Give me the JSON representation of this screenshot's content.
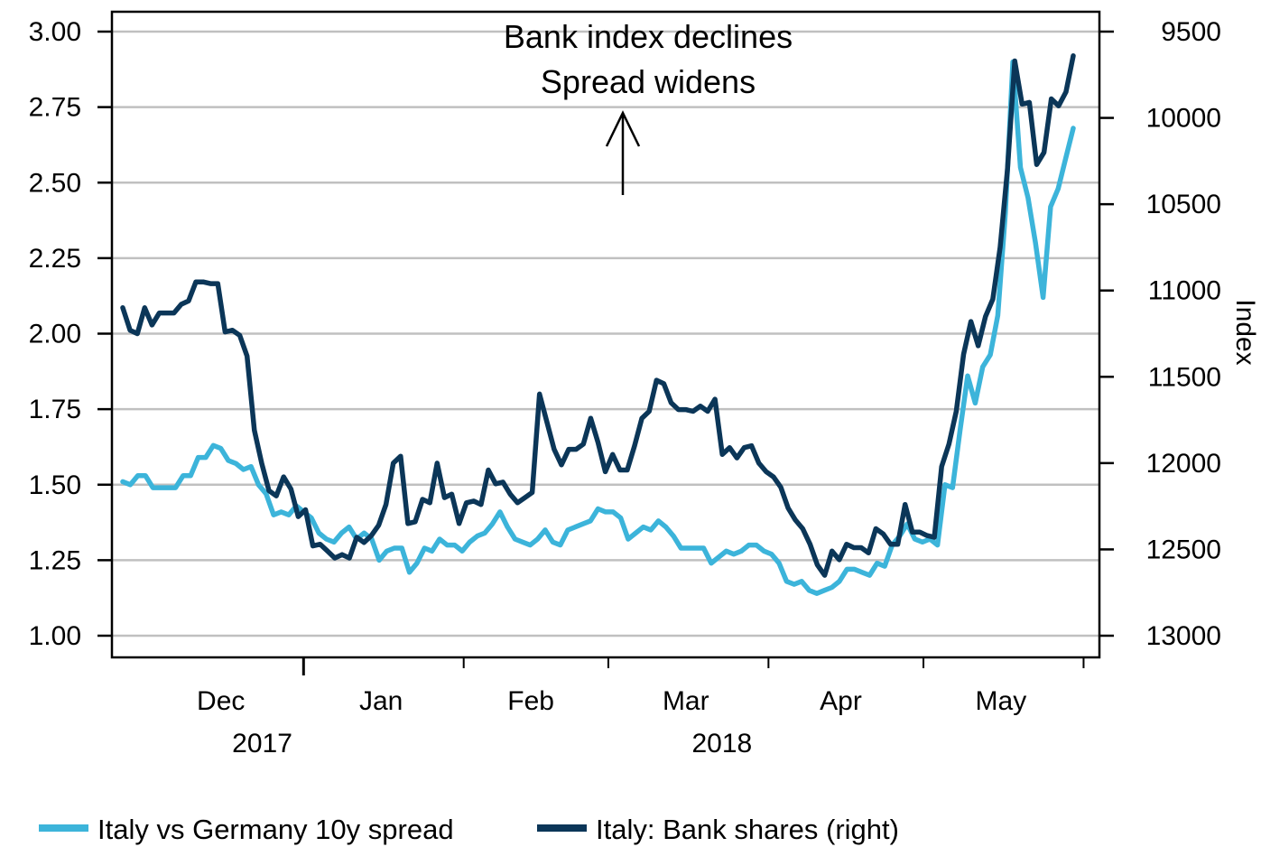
{
  "chart_data": {
    "type": "line",
    "title": "",
    "colors": {
      "spread": "#3cb4da",
      "bank": "#0b3658",
      "grid": "#c0c0c0"
    },
    "grid": true,
    "legend_position": "bottom",
    "annotation": {
      "line1": "Bank index declines",
      "line2": "Spread widens",
      "arrow": "up"
    },
    "x_axis": {
      "months": [
        "Dec",
        "Jan",
        "Feb",
        "Mar",
        "Apr",
        "May"
      ],
      "years": [
        "2017",
        "2018"
      ],
      "range": [
        "2017-11-27",
        "2018-05-30"
      ]
    },
    "y_left": {
      "ylabel": "",
      "ylim": [
        1.0,
        3.0
      ],
      "ticks": [
        "1.00",
        "1.25",
        "1.50",
        "1.75",
        "2.00",
        "2.25",
        "2.50",
        "2.75",
        "3.00"
      ]
    },
    "y_right": {
      "ylabel": "Index",
      "inverted": true,
      "ylim": [
        13000,
        9500
      ],
      "ticks": [
        "9500",
        "10000",
        "10500",
        "11000",
        "11500",
        "12000",
        "12500",
        "13000"
      ]
    },
    "series": [
      {
        "name": "Italy vs Germany 10y spread",
        "axis": "left",
        "values": [
          1.51,
          1.5,
          1.53,
          1.53,
          1.49,
          1.49,
          1.49,
          1.49,
          1.53,
          1.53,
          1.59,
          1.59,
          1.63,
          1.62,
          1.58,
          1.57,
          1.55,
          1.56,
          1.5,
          1.47,
          1.4,
          1.41,
          1.4,
          1.43,
          1.41,
          1.39,
          1.34,
          1.32,
          1.31,
          1.34,
          1.36,
          1.32,
          1.34,
          1.32,
          1.25,
          1.28,
          1.29,
          1.29,
          1.21,
          1.24,
          1.29,
          1.28,
          1.32,
          1.3,
          1.3,
          1.28,
          1.31,
          1.33,
          1.34,
          1.37,
          1.41,
          1.36,
          1.32,
          1.31,
          1.3,
          1.32,
          1.35,
          1.31,
          1.3,
          1.35,
          1.36,
          1.37,
          1.38,
          1.42,
          1.41,
          1.41,
          1.39,
          1.32,
          1.34,
          1.36,
          1.35,
          1.38,
          1.36,
          1.33,
          1.29,
          1.29,
          1.29,
          1.29,
          1.24,
          1.26,
          1.28,
          1.27,
          1.28,
          1.3,
          1.3,
          1.28,
          1.27,
          1.24,
          1.18,
          1.17,
          1.18,
          1.15,
          1.14,
          1.15,
          1.16,
          1.18,
          1.22,
          1.22,
          1.21,
          1.2,
          1.24,
          1.23,
          1.3,
          1.33,
          1.37,
          1.32,
          1.31,
          1.32,
          1.3,
          1.5,
          1.49,
          1.68,
          1.86,
          1.77,
          1.89,
          1.93,
          2.06,
          2.4,
          2.9,
          2.55,
          2.45,
          2.3,
          2.12,
          2.42,
          2.48,
          2.58,
          2.68
        ]
      },
      {
        "name": "Italy: Bank shares (right)",
        "axis": "right",
        "values": [
          11100,
          11230,
          11250,
          11100,
          11200,
          11130,
          11130,
          11130,
          11080,
          11060,
          10950,
          10950,
          10960,
          10960,
          11240,
          11230,
          11260,
          11380,
          11810,
          12000,
          12160,
          12190,
          12080,
          12150,
          12310,
          12270,
          12480,
          12470,
          12510,
          12550,
          12530,
          12550,
          12430,
          12460,
          12420,
          12360,
          12240,
          12000,
          11960,
          12350,
          12340,
          12210,
          12230,
          12000,
          12200,
          12180,
          12350,
          12230,
          12220,
          12240,
          12040,
          12120,
          12110,
          12180,
          12230,
          12200,
          12170,
          11600,
          11760,
          11920,
          12010,
          11920,
          11920,
          11890,
          11740,
          11880,
          12050,
          11950,
          12040,
          12040,
          11900,
          11740,
          11700,
          11520,
          11540,
          11650,
          11690,
          11690,
          11700,
          11670,
          11700,
          11630,
          11950,
          11910,
          11970,
          11910,
          11900,
          12000,
          12050,
          12080,
          12140,
          12260,
          12330,
          12380,
          12470,
          12590,
          12650,
          12510,
          12560,
          12470,
          12490,
          12490,
          12520,
          12380,
          12410,
          12470,
          12470,
          12240,
          12400,
          12400,
          12420,
          12430,
          12020,
          11890,
          11700,
          11370,
          11180,
          11320,
          11150,
          11050,
          10750,
          10300,
          9670,
          9920,
          9910,
          10270,
          10200,
          9890,
          9930,
          9850,
          9640
        ]
      }
    ]
  }
}
